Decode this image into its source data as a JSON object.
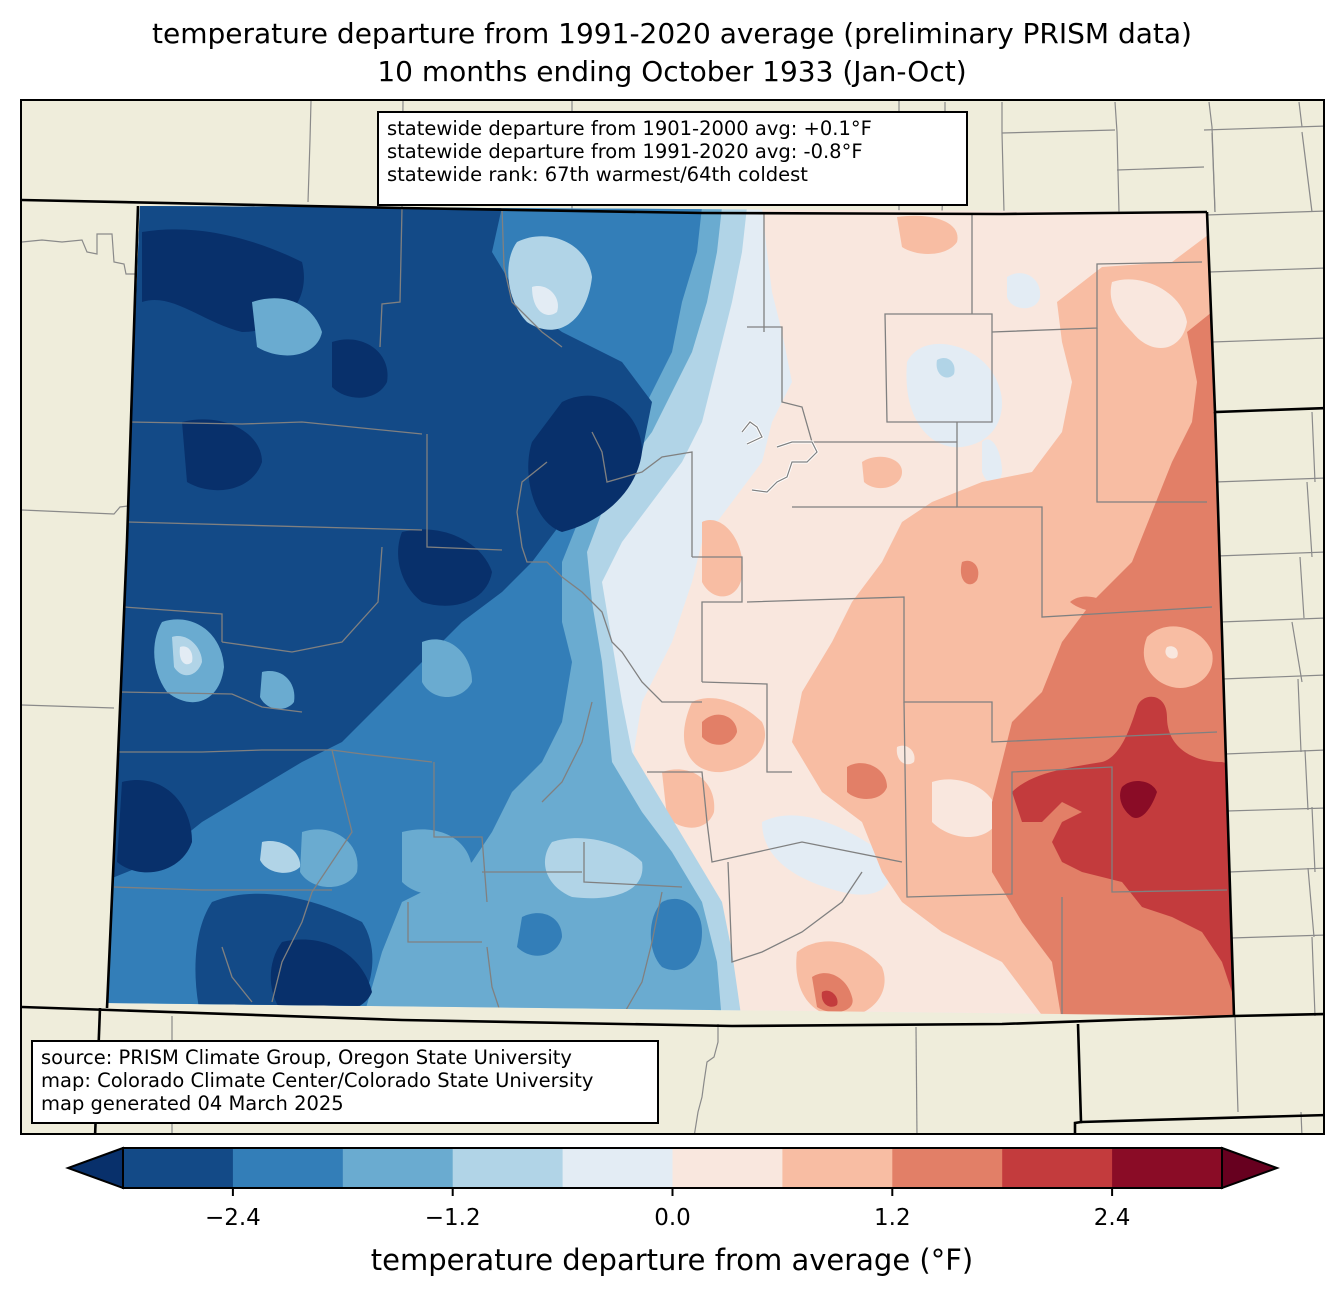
{
  "title": {
    "line1": "temperature departure from 1991-2020 average (preliminary PRISM data)",
    "line2": "10 months ending October 1933 (Jan-Oct)"
  },
  "stats_box": {
    "lines": [
      "statewide departure from 1901-2000 avg: +0.1°F",
      "statewide departure from 1991-2020 avg: -0.8°F",
      "statewide rank: 67th warmest/64th coldest"
    ]
  },
  "source_box": {
    "lines": [
      "source: PRISM Climate Group, Oregon State University",
      "map: Colorado Climate Center/Colorado State University",
      "map generated 04 March 2025"
    ]
  },
  "colorbar": {
    "label": "temperature departure from average (°F)",
    "range": [
      -3.0,
      3.0
    ],
    "extend": "both",
    "under_color": "#08306b",
    "over_color": "#67001f",
    "bins": [
      {
        "from": -3.0,
        "to": -2.4,
        "color": "#134a87"
      },
      {
        "from": -2.4,
        "to": -1.8,
        "color": "#337eb8"
      },
      {
        "from": -1.8,
        "to": -1.2,
        "color": "#6aabd0"
      },
      {
        "from": -1.2,
        "to": -0.6,
        "color": "#b1d4e7"
      },
      {
        "from": -0.6,
        "to": 0.0,
        "color": "#e3ecf4"
      },
      {
        "from": 0.0,
        "to": 0.6,
        "color": "#f9e7de"
      },
      {
        "from": 0.6,
        "to": 1.2,
        "color": "#f8bda3"
      },
      {
        "from": 1.2,
        "to": 1.8,
        "color": "#e27f67"
      },
      {
        "from": 1.8,
        "to": 2.4,
        "color": "#c33b3d"
      },
      {
        "from": 2.4,
        "to": 3.0,
        "color": "#8a0c26"
      }
    ],
    "ticks": [
      {
        "value": -2.4,
        "label": "−2.4"
      },
      {
        "value": -1.2,
        "label": "−1.2"
      },
      {
        "value": 0.0,
        "label": "0.0"
      },
      {
        "value": 1.2,
        "label": "1.2"
      },
      {
        "value": 2.4,
        "label": "2.4"
      }
    ]
  },
  "map": {
    "region": "Colorado",
    "land_color": "#efeddb",
    "state_border_color": "#000000",
    "county_border_color": "#808080",
    "summary": "Below-average temperatures (blue, -0.6 to below -3.0 °F) across western mountains; above-average (red, up to above +2.4 °F) across southeastern plains"
  }
}
